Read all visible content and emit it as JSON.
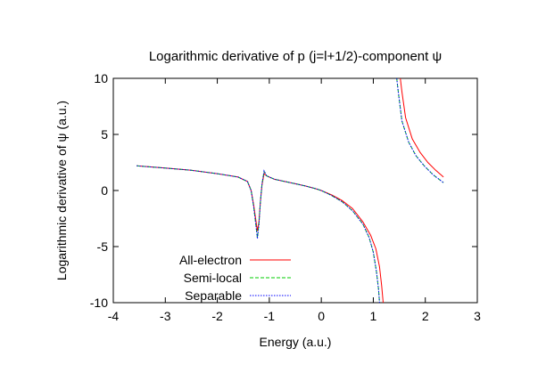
{
  "chart_data": {
    "type": "line",
    "title": "Logarithmic derivative of p (j=l+1/2)-component ψ",
    "xlabel": "Energy (a.u.)",
    "ylabel": "Logarithmic derivative of ψ (a.u.)",
    "xlim": [
      -4,
      3
    ],
    "ylim": [
      -10,
      10
    ],
    "xticks": [
      "-4",
      "-3",
      "-2",
      "-1",
      "0",
      "1",
      "2",
      "3"
    ],
    "yticks": [
      "10",
      "5",
      "0",
      "-5",
      "-10"
    ],
    "grid": false,
    "legend_position": "bottom-left",
    "series": [
      {
        "name": "All-electron",
        "color": "#ff0000",
        "dash": "solid",
        "segments": [
          [
            [
              -3.55,
              2.2
            ],
            [
              -3.0,
              2.0
            ],
            [
              -2.5,
              1.8
            ],
            [
              -2.0,
              1.5
            ],
            [
              -1.6,
              1.2
            ],
            [
              -1.42,
              0.8
            ],
            [
              -1.35,
              0.0
            ],
            [
              -1.3,
              -1.3
            ],
            [
              -1.26,
              -2.6
            ],
            [
              -1.23,
              -3.6
            ],
            [
              -1.2,
              -2.8
            ],
            [
              -1.17,
              -1.0
            ],
            [
              -1.14,
              0.5
            ],
            [
              -1.1,
              1.5
            ],
            [
              -1.05,
              1.3
            ],
            [
              -0.9,
              1.0
            ],
            [
              -0.7,
              0.8
            ],
            [
              -0.5,
              0.6
            ],
            [
              -0.3,
              0.4
            ],
            [
              -0.1,
              0.15
            ],
            [
              0.0,
              0.0
            ],
            [
              0.2,
              -0.4
            ],
            [
              0.4,
              -0.9
            ],
            [
              0.6,
              -1.6
            ],
            [
              0.8,
              -2.8
            ],
            [
              0.95,
              -4.0
            ],
            [
              1.05,
              -5.2
            ],
            [
              1.12,
              -6.8
            ],
            [
              1.16,
              -8.5
            ],
            [
              1.19,
              -10.0
            ]
          ],
          [
            [
              1.52,
              10.0
            ],
            [
              1.55,
              8.8
            ],
            [
              1.62,
              6.5
            ],
            [
              1.75,
              4.6
            ],
            [
              1.9,
              3.4
            ],
            [
              2.05,
              2.5
            ],
            [
              2.2,
              1.8
            ],
            [
              2.35,
              1.2
            ]
          ]
        ]
      },
      {
        "name": "Semi-local",
        "color": "#00cc00",
        "dash": "4,2",
        "segments": [
          [
            [
              -3.55,
              2.2
            ],
            [
              -3.0,
              2.0
            ],
            [
              -2.5,
              1.8
            ],
            [
              -2.0,
              1.5
            ],
            [
              -1.6,
              1.2
            ],
            [
              -1.42,
              0.8
            ],
            [
              -1.35,
              0.0
            ],
            [
              -1.3,
              -1.5
            ],
            [
              -1.26,
              -3.0
            ],
            [
              -1.23,
              -4.2
            ],
            [
              -1.2,
              -3.0
            ],
            [
              -1.17,
              -1.0
            ],
            [
              -1.14,
              0.6
            ],
            [
              -1.1,
              1.7
            ],
            [
              -1.05,
              1.3
            ],
            [
              -0.9,
              1.0
            ],
            [
              -0.7,
              0.8
            ],
            [
              -0.5,
              0.6
            ],
            [
              -0.3,
              0.4
            ],
            [
              -0.1,
              0.15
            ],
            [
              0.0,
              0.0
            ],
            [
              0.2,
              -0.45
            ],
            [
              0.4,
              -1.0
            ],
            [
              0.6,
              -1.8
            ],
            [
              0.8,
              -3.0
            ],
            [
              0.92,
              -4.2
            ],
            [
              1.0,
              -5.5
            ],
            [
              1.06,
              -7.2
            ],
            [
              1.1,
              -8.8
            ],
            [
              1.12,
              -10.0
            ]
          ],
          [
            [
              1.45,
              10.0
            ],
            [
              1.48,
              8.8
            ],
            [
              1.55,
              6.2
            ],
            [
              1.68,
              4.3
            ],
            [
              1.82,
              3.1
            ],
            [
              1.98,
              2.2
            ],
            [
              2.15,
              1.4
            ],
            [
              2.35,
              0.7
            ]
          ]
        ]
      },
      {
        "name": "Separable",
        "color": "#0000ff",
        "dash": "1.5,1.5",
        "segments": [
          [
            [
              -3.55,
              2.2
            ],
            [
              -3.0,
              2.0
            ],
            [
              -2.5,
              1.8
            ],
            [
              -2.0,
              1.5
            ],
            [
              -1.6,
              1.2
            ],
            [
              -1.42,
              0.8
            ],
            [
              -1.35,
              0.0
            ],
            [
              -1.3,
              -1.5
            ],
            [
              -1.26,
              -3.0
            ],
            [
              -1.23,
              -4.3
            ],
            [
              -1.2,
              -3.1
            ],
            [
              -1.17,
              -1.0
            ],
            [
              -1.14,
              0.6
            ],
            [
              -1.1,
              1.75
            ],
            [
              -1.05,
              1.3
            ],
            [
              -0.9,
              1.0
            ],
            [
              -0.7,
              0.8
            ],
            [
              -0.5,
              0.6
            ],
            [
              -0.3,
              0.4
            ],
            [
              -0.1,
              0.15
            ],
            [
              0.0,
              0.0
            ],
            [
              0.2,
              -0.45
            ],
            [
              0.4,
              -1.0
            ],
            [
              0.6,
              -1.8
            ],
            [
              0.8,
              -3.0
            ],
            [
              0.92,
              -4.2
            ],
            [
              1.0,
              -5.5
            ],
            [
              1.06,
              -7.2
            ],
            [
              1.1,
              -8.8
            ],
            [
              1.12,
              -10.0
            ]
          ],
          [
            [
              1.45,
              10.0
            ],
            [
              1.48,
              8.8
            ],
            [
              1.55,
              6.2
            ],
            [
              1.68,
              4.3
            ],
            [
              1.82,
              3.1
            ],
            [
              1.98,
              2.2
            ],
            [
              2.15,
              1.4
            ],
            [
              2.35,
              0.7
            ]
          ]
        ]
      }
    ]
  }
}
